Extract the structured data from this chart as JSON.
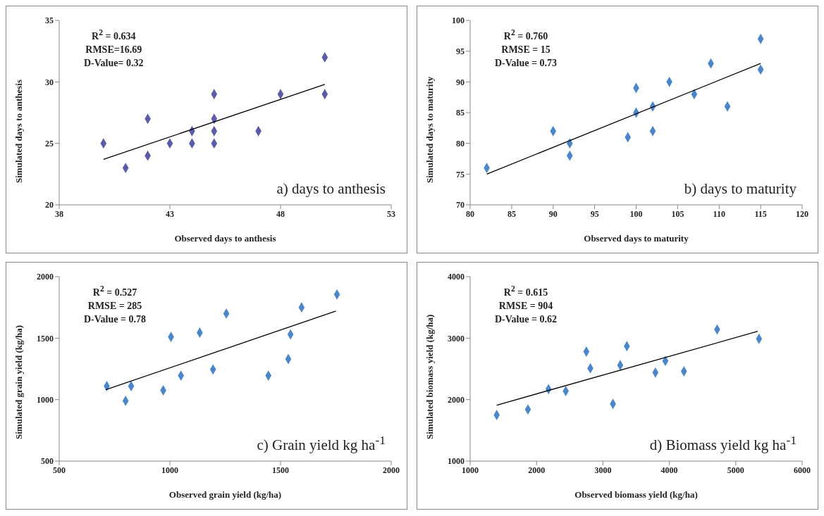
{
  "chart_data": [
    {
      "type": "scatter",
      "title": "a) days to anthesis",
      "xlabel": "Observed days to anthesis",
      "ylabel": "Simulated days to anthesis",
      "annotations": [
        "R$^{2}$ = 0.634",
        "RMSE=16.69",
        "D-Value= 0.32"
      ],
      "xlim": [
        38,
        53
      ],
      "xticks": [
        38,
        43,
        48,
        53
      ],
      "ylim": [
        20,
        35
      ],
      "yticks": [
        20,
        25,
        30,
        35
      ],
      "grid": false,
      "series": [
        {
          "marker": "diamond",
          "color": "#5a5ca8",
          "x": [
            40,
            41,
            42,
            42,
            43,
            44,
            44,
            45,
            45,
            45,
            45,
            47,
            48,
            50,
            50
          ],
          "values": [
            25,
            23,
            27,
            24,
            25,
            26,
            25,
            29,
            27,
            26,
            25,
            26,
            29,
            32,
            29
          ]
        },
        {
          "type": "line",
          "marker": "none",
          "color": "#000000",
          "x": [
            40,
            50
          ],
          "values": [
            23.7,
            29.8
          ]
        }
      ]
    },
    {
      "type": "scatter",
      "title": "b) days to maturity",
      "xlabel": "Observed days to maturity",
      "ylabel": "Simulated days to maturity",
      "annotations": [
        "R$^{2}$ = 0.760",
        "RMSE = 15",
        "D-Value = 0.73"
      ],
      "xlim": [
        80,
        120
      ],
      "xticks": [
        80,
        85,
        90,
        95,
        100,
        105,
        110,
        115,
        120
      ],
      "ylim": [
        70,
        100
      ],
      "yticks": [
        70,
        75,
        80,
        85,
        90,
        95,
        100
      ],
      "grid": false,
      "series": [
        {
          "marker": "diamond",
          "color": "#4a86c8",
          "x": [
            82,
            90,
            92,
            92,
            99,
            100,
            100,
            102,
            102,
            104,
            107,
            109,
            111,
            115,
            115
          ],
          "values": [
            76,
            82,
            80,
            78,
            81,
            89,
            85,
            86,
            82,
            90,
            88,
            93,
            86,
            97,
            92
          ]
        },
        {
          "type": "line",
          "marker": "none",
          "color": "#000000",
          "x": [
            82,
            115
          ],
          "values": [
            75,
            93
          ]
        }
      ]
    },
    {
      "type": "scatter",
      "title": "c) Grain yield kg ha$^{-1}$",
      "xlabel": "Observed  grain yield (kg/ha)",
      "ylabel": "Simulated grain yield (kg/ha)",
      "annotations": [
        "R$^{2}$ = 0.527",
        "RMSE = 285",
        "D-Value = 0.78"
      ],
      "xlim": [
        500,
        2000
      ],
      "xticks": [
        500,
        1000,
        1500,
        2000
      ],
      "ylim": [
        500,
        2000
      ],
      "yticks": [
        500,
        1000,
        1500,
        2000
      ],
      "grid": false,
      "series": [
        {
          "marker": "diamond",
          "color": "#4a86c8",
          "x": [
            715,
            800,
            825,
            970,
            1005,
            1050,
            1135,
            1195,
            1255,
            1445,
            1535,
            1545,
            1595,
            1755
          ],
          "values": [
            1110,
            990,
            1110,
            1075,
            1510,
            1195,
            1545,
            1245,
            1700,
            1195,
            1330,
            1530,
            1750,
            1855
          ]
        },
        {
          "type": "line",
          "marker": "none",
          "color": "#000000",
          "x": [
            710,
            1750
          ],
          "values": [
            1080,
            1720
          ]
        }
      ]
    },
    {
      "type": "scatter",
      "title": "d) Biomass yield kg ha$^{-1}$",
      "xlabel": "Observed biomass yield (kg/ha)",
      "ylabel": "Simulated biomass yield (kg/ha)",
      "annotations": [
        "R$^{2}$ = 0.615",
        "RMSE = 904",
        "D-Value = 0.62"
      ],
      "xlim": [
        1000,
        6000
      ],
      "xticks": [
        1000,
        2000,
        3000,
        4000,
        5000,
        6000
      ],
      "ylim": [
        1000,
        4000
      ],
      "yticks": [
        1000,
        2000,
        3000,
        4000
      ],
      "grid": false,
      "series": [
        {
          "marker": "diamond",
          "color": "#4a86c8",
          "x": [
            1400,
            1870,
            2180,
            2440,
            2750,
            2810,
            3150,
            3260,
            3360,
            3790,
            3940,
            4220,
            4720,
            5350
          ],
          "values": [
            1750,
            1840,
            2170,
            2140,
            2780,
            2510,
            1930,
            2560,
            2870,
            2440,
            2630,
            2460,
            3140,
            2990
          ]
        },
        {
          "type": "line",
          "marker": "none",
          "color": "#000000",
          "x": [
            1400,
            5330
          ],
          "values": [
            1910,
            3110
          ]
        }
      ]
    }
  ]
}
